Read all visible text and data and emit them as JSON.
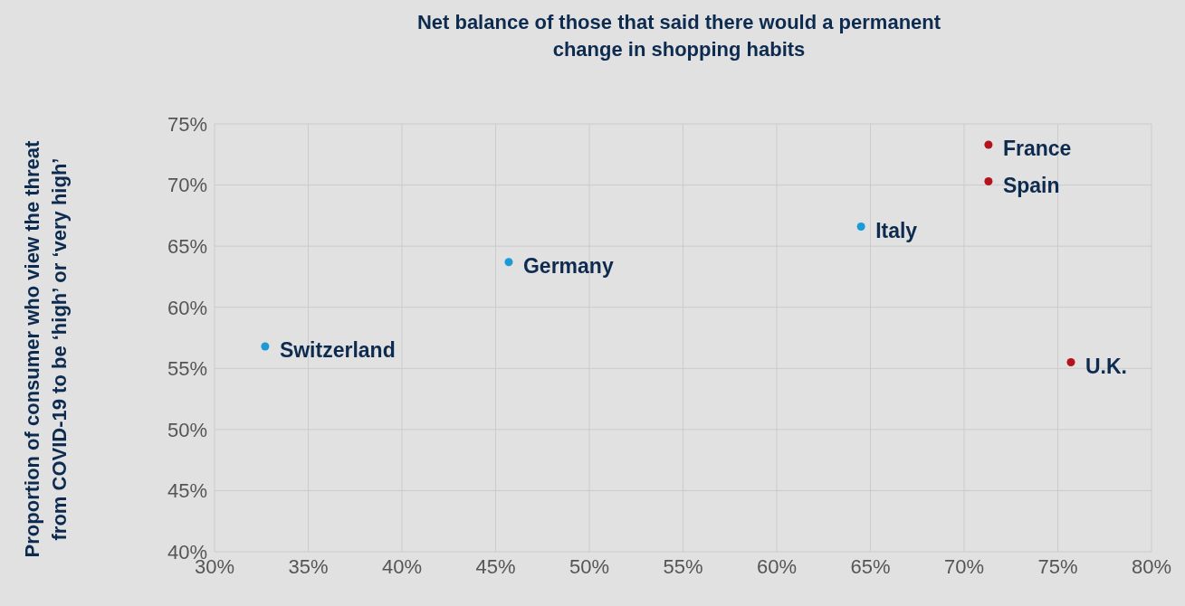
{
  "chart_data": {
    "type": "scatter",
    "title": "Net balance of those that said there would a permanent change in shopping habits",
    "ylabel": "Proportion of consumer who view the threat from COVID-19 to be ‘high’ or ‘very high’",
    "series": [
      {
        "color": "#1a9ad6",
        "x": [
          32.7,
          45.7,
          64.5
        ],
        "values": [
          56.8,
          63.7,
          66.6
        ]
      },
      {
        "color": "#b5121b",
        "x": [
          71.3,
          71.3,
          75.7
        ],
        "values": [
          73.3,
          70.3,
          55.5
        ]
      }
    ],
    "annotations": [
      {
        "text": "Switzerland",
        "x": 32.7,
        "y": 56.8
      },
      {
        "text": "Germany",
        "x": 45.7,
        "y": 63.7
      },
      {
        "text": "Italy",
        "x": 64.5,
        "y": 66.6
      },
      {
        "text": "France",
        "x": 71.3,
        "y": 73.3
      },
      {
        "text": "Spain",
        "x": 71.3,
        "y": 70.3
      },
      {
        "text": "U.K.",
        "x": 75.7,
        "y": 55.5
      }
    ],
    "xlim": [
      30,
      80
    ],
    "xticks": [
      {
        "value": 30,
        "label": "30%"
      },
      {
        "value": 35,
        "label": "35%"
      },
      {
        "value": 40,
        "label": "40%"
      },
      {
        "value": 45,
        "label": "45%"
      },
      {
        "value": 50,
        "label": "50%"
      },
      {
        "value": 55,
        "label": "55%"
      },
      {
        "value": 60,
        "label": "60%"
      },
      {
        "value": 65,
        "label": "65%"
      },
      {
        "value": 70,
        "label": "70%"
      },
      {
        "value": 75,
        "label": "75%"
      },
      {
        "value": 80,
        "label": "80%"
      }
    ],
    "ylim": [
      40,
      75
    ],
    "yticks": [
      {
        "value": 40,
        "label": "40%"
      },
      {
        "value": 45,
        "label": "45%"
      },
      {
        "value": 50,
        "label": "50%"
      },
      {
        "value": 55,
        "label": "55%"
      },
      {
        "value": 60,
        "label": "60%"
      },
      {
        "value": 65,
        "label": "65%"
      },
      {
        "value": 70,
        "label": "70%"
      },
      {
        "value": 75,
        "label": "75%"
      }
    ],
    "grid": true,
    "marker": "circle",
    "legend": false
  }
}
